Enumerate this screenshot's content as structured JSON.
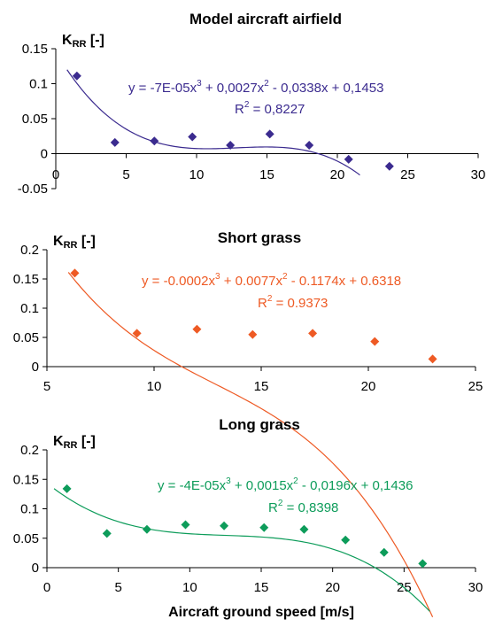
{
  "chart_data": [
    {
      "type": "scatter",
      "title": "Model aircraft airfield",
      "ylabel": "K",
      "ylabel_sub": "RR",
      "ylabel_unit": " [-]",
      "xlim": [
        0,
        30
      ],
      "ylim": [
        -0.05,
        0.15
      ],
      "x_ticks": [
        "0",
        "5",
        "10",
        "15",
        "20",
        "25",
        "30"
      ],
      "y_ticks": [
        "-0.05",
        "0",
        "0.05",
        "0.1",
        "0.15"
      ],
      "color": "#3b2b8f",
      "marker_color": "#3b2b8f",
      "x": [
        1.5,
        4.2,
        7.0,
        9.7,
        12.4,
        15.2,
        18.0,
        20.8,
        23.7
      ],
      "y": [
        0.111,
        0.016,
        0.018,
        0.024,
        0.012,
        0.028,
        0.012,
        -0.008,
        -0.018
      ],
      "trendline": {
        "coefficients": [
          -7e-05,
          0.0027,
          -0.0338,
          0.1453
        ],
        "x_range": [
          0.8,
          21.6
        ],
        "equation_parts": [
          "y = -7E-05x",
          "3",
          " + 0,0027x",
          "2",
          " - 0,0338x + 0,1453"
        ],
        "r2_parts": [
          "R",
          "2",
          " = 0,8227"
        ]
      }
    },
    {
      "type": "scatter",
      "title": "Short grass",
      "ylabel": "K",
      "ylabel_sub": "RR",
      "ylabel_unit": " [-]",
      "xlim": [
        5,
        25
      ],
      "ylim": [
        0,
        0.2
      ],
      "x_ticks": [
        "5",
        "10",
        "15",
        "20",
        "25"
      ],
      "y_ticks": [
        "0",
        "0.05",
        "0.1",
        "0.15",
        "0.2"
      ],
      "color": "#ee5a24",
      "marker_color": "#ee5a24",
      "x": [
        6.3,
        9.2,
        12.0,
        14.6,
        17.4,
        20.3,
        23.0
      ],
      "y": [
        0.16,
        0.057,
        0.064,
        0.055,
        0.057,
        0.043,
        0.013
      ],
      "trendline": {
        "coefficients": [
          -0.0002,
          0.0077,
          -0.1174,
          0.6318
        ],
        "x_range": [
          6.0,
          23.0
        ],
        "equation_parts": [
          "y = -0.0002x",
          "3",
          " + 0.0077x",
          "2",
          " - 0.1174x + 0.6318"
        ],
        "r2_parts": [
          "R",
          "2",
          " = 0.9373"
        ]
      }
    },
    {
      "type": "scatter",
      "title": "Long grass",
      "ylabel": "K",
      "ylabel_sub": "RR",
      "ylabel_unit": " [-]",
      "xlabel": "Aircraft ground speed [m/s]",
      "xlim": [
        0,
        30
      ],
      "ylim": [
        0,
        0.2
      ],
      "x_ticks": [
        "0",
        "5",
        "10",
        "15",
        "20",
        "25",
        "30"
      ],
      "y_ticks": [
        "0",
        "0.05",
        "0.1",
        "0.15",
        "0.2"
      ],
      "color": "#0d9c5a",
      "marker_color": "#0d9c5a",
      "x": [
        1.4,
        4.2,
        7.0,
        9.7,
        12.4,
        15.2,
        18.0,
        20.9,
        23.6,
        26.3
      ],
      "y": [
        0.134,
        0.058,
        0.065,
        0.073,
        0.071,
        0.068,
        0.065,
        0.047,
        0.026,
        0.007
      ],
      "trendline": {
        "coefficients": [
          -4e-05,
          0.0015,
          -0.0196,
          0.1436
        ],
        "x_range": [
          0.5,
          26.8
        ],
        "equation_parts": [
          "y = -4E-05x",
          "3",
          " + 0,0015x",
          "2",
          " - 0,0196x + 0,1436"
        ],
        "r2_parts": [
          "R",
          "2",
          " = 0,8398"
        ]
      }
    }
  ]
}
